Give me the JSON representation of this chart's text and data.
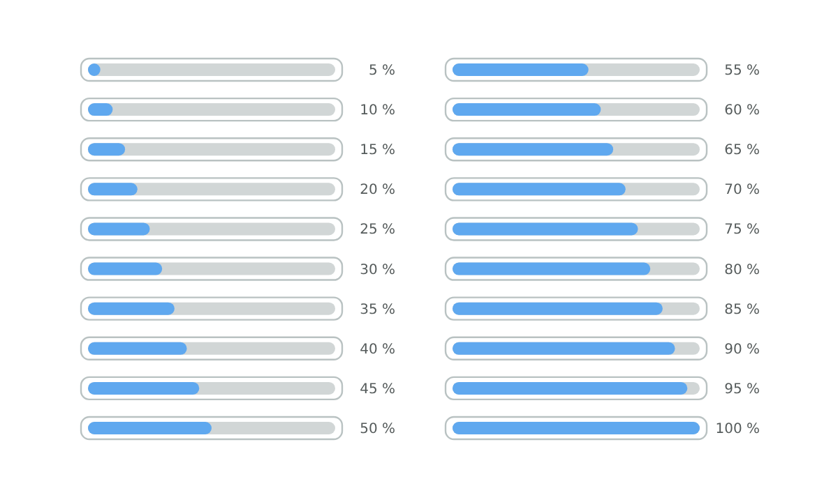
{
  "chart_data": [
    {
      "type": "bar",
      "orientation": "horizontal",
      "categories": [
        null,
        null,
        null,
        null,
        null,
        null,
        null,
        null,
        null,
        null
      ],
      "values": [
        5,
        10,
        15,
        20,
        25,
        30,
        35,
        40,
        45,
        50
      ],
      "color": "#5fa8ef",
      "xlim": [
        0,
        100
      ],
      "value_labels": [
        "5 %",
        "10 %",
        "15 %",
        "20 %",
        "25 %",
        "30 %",
        "35 %",
        "40 %",
        "45 %",
        "50 %"
      ]
    },
    {
      "type": "bar",
      "orientation": "horizontal",
      "categories": [
        null,
        null,
        null,
        null,
        null,
        null,
        null,
        null,
        null,
        null
      ],
      "values": [
        55,
        60,
        65,
        70,
        75,
        80,
        85,
        90,
        95,
        100
      ],
      "color": "#5fa8ef",
      "xlim": [
        0,
        100
      ],
      "value_labels": [
        "55 %",
        "60 %",
        "65 %",
        "70 %",
        "75 %",
        "80 %",
        "85 %",
        "90 %",
        "95 %",
        "100 %"
      ]
    }
  ]
}
